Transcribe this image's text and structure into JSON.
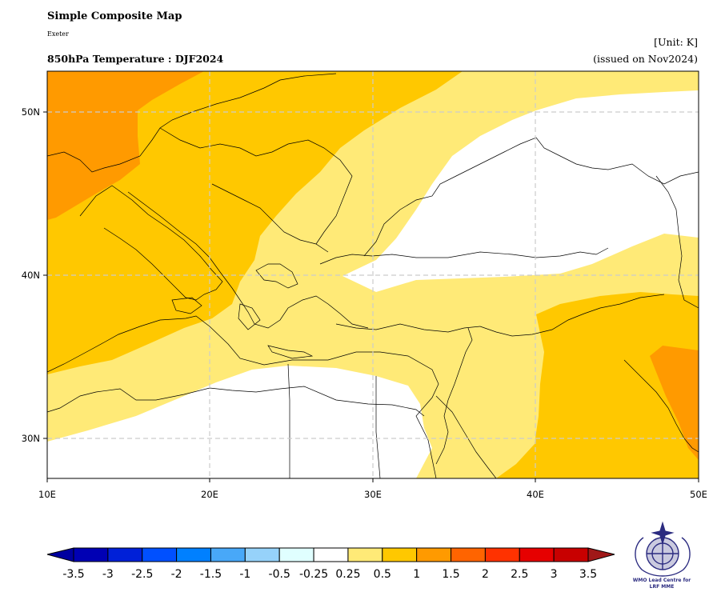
{
  "header": {
    "title": "Simple Composite Map",
    "subtitle": "Exeter",
    "map_title": "850hPa Temperature : DJF2024",
    "unit": "[Unit: K]",
    "issued": "(issued on Nov2024)"
  },
  "map": {
    "lon_range": [
      10,
      50
    ],
    "lat_range": [
      27.5,
      52.5
    ],
    "x_ticks": [
      "10E",
      "20E",
      "30E",
      "40E",
      "50E"
    ],
    "y_ticks": [
      "30N",
      "40N",
      "50N"
    ],
    "grid": "dashed",
    "anomaly_colors": {
      "0.25_to_0.5": "#ffea77",
      "0.5_to_1": "#ffc800",
      "1_to_1.5": "#ff9a00"
    }
  },
  "colorbar": {
    "labels": [
      "-3.5",
      "-3",
      "-2.5",
      "-2",
      "-1.5",
      "-1",
      "-0.5",
      "-0.25",
      "0.25",
      "0.5",
      "1",
      "1.5",
      "2",
      "2.5",
      "3",
      "3.5"
    ],
    "colors": [
      "#0000b4",
      "#0020d8",
      "#0050ff",
      "#0080ff",
      "#48a8f8",
      "#96d2fa",
      "#e0ffff",
      "#ffffff",
      "#ffea77",
      "#ffc800",
      "#ff9a00",
      "#ff6400",
      "#ff3200",
      "#e60000",
      "#c80000"
    ],
    "low_extend_color": "#0000a0",
    "high_extend_color": "#a01818"
  },
  "logo": {
    "line1": "WMO Lead Centre for",
    "line2": "LRF MME"
  }
}
